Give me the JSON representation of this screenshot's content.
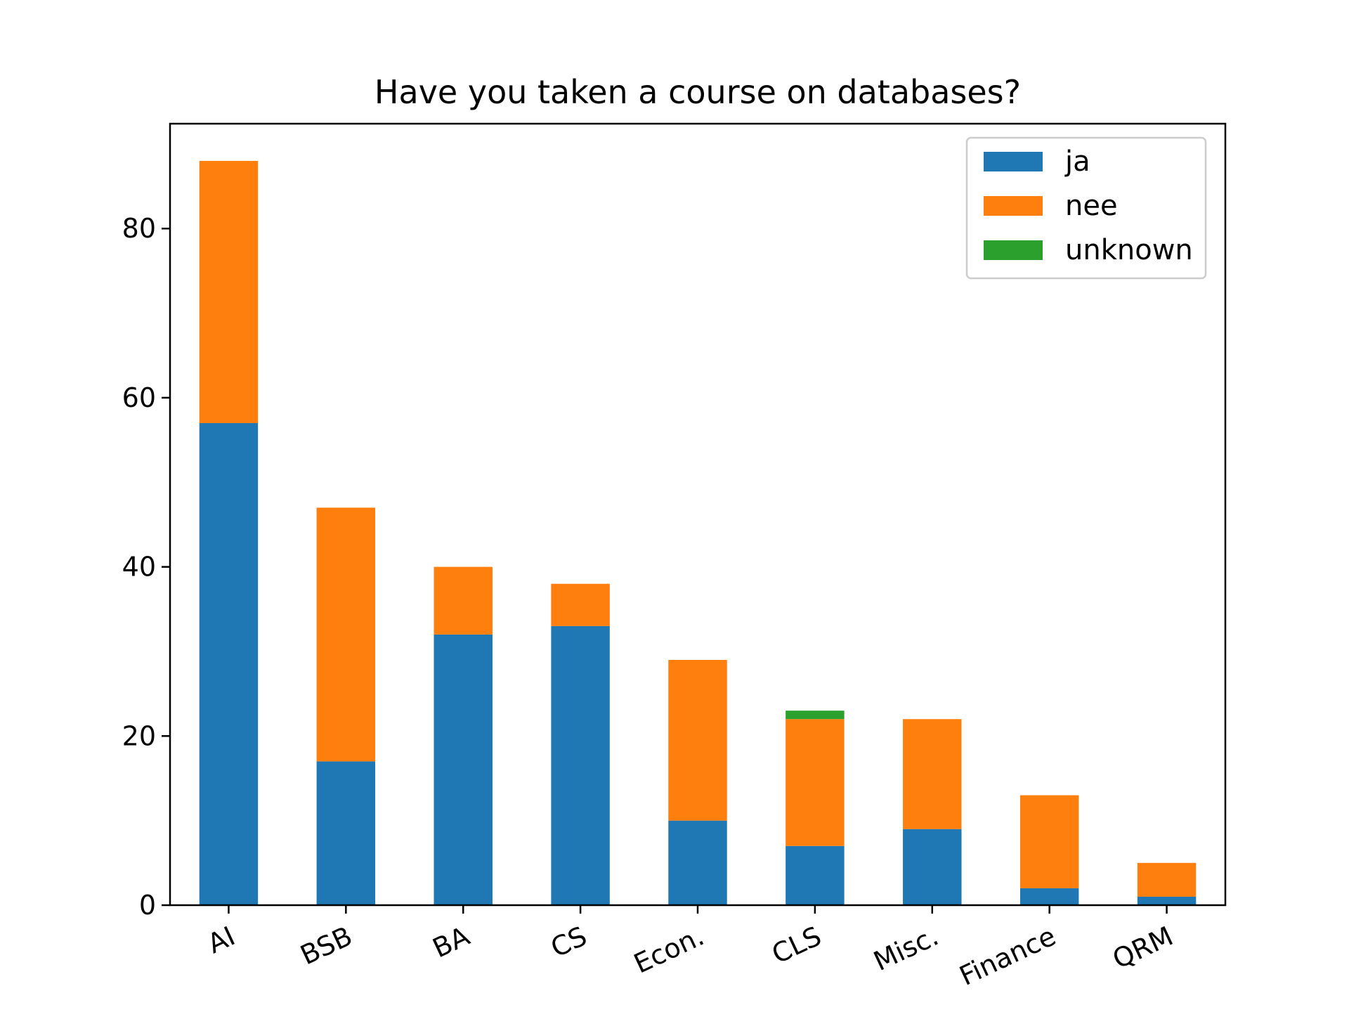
{
  "chart_data": {
    "type": "bar",
    "stacked": true,
    "title": "Have you taken a course on databases?",
    "xlabel": "",
    "ylabel": "",
    "categories": [
      "AI",
      "BSB",
      "BA",
      "CS",
      "Econ.",
      "CLS",
      "Misc.",
      "Finance",
      "QRM"
    ],
    "series": [
      {
        "name": "ja",
        "color": "#1f77b4",
        "values": [
          57,
          17,
          32,
          33,
          10,
          7,
          9,
          2,
          1
        ]
      },
      {
        "name": "nee",
        "color": "#ff7f0e",
        "values": [
          31,
          30,
          8,
          5,
          19,
          15,
          13,
          11,
          4
        ]
      },
      {
        "name": "unknown",
        "color": "#2ca02c",
        "values": [
          0,
          0,
          0,
          0,
          0,
          1,
          0,
          0,
          0
        ]
      }
    ],
    "ylim": [
      0,
      92.4
    ],
    "yticks": [
      0,
      20,
      40,
      60,
      80
    ],
    "xtick_rotation_deg": -25,
    "grid": false,
    "legend_position": "top-right"
  }
}
